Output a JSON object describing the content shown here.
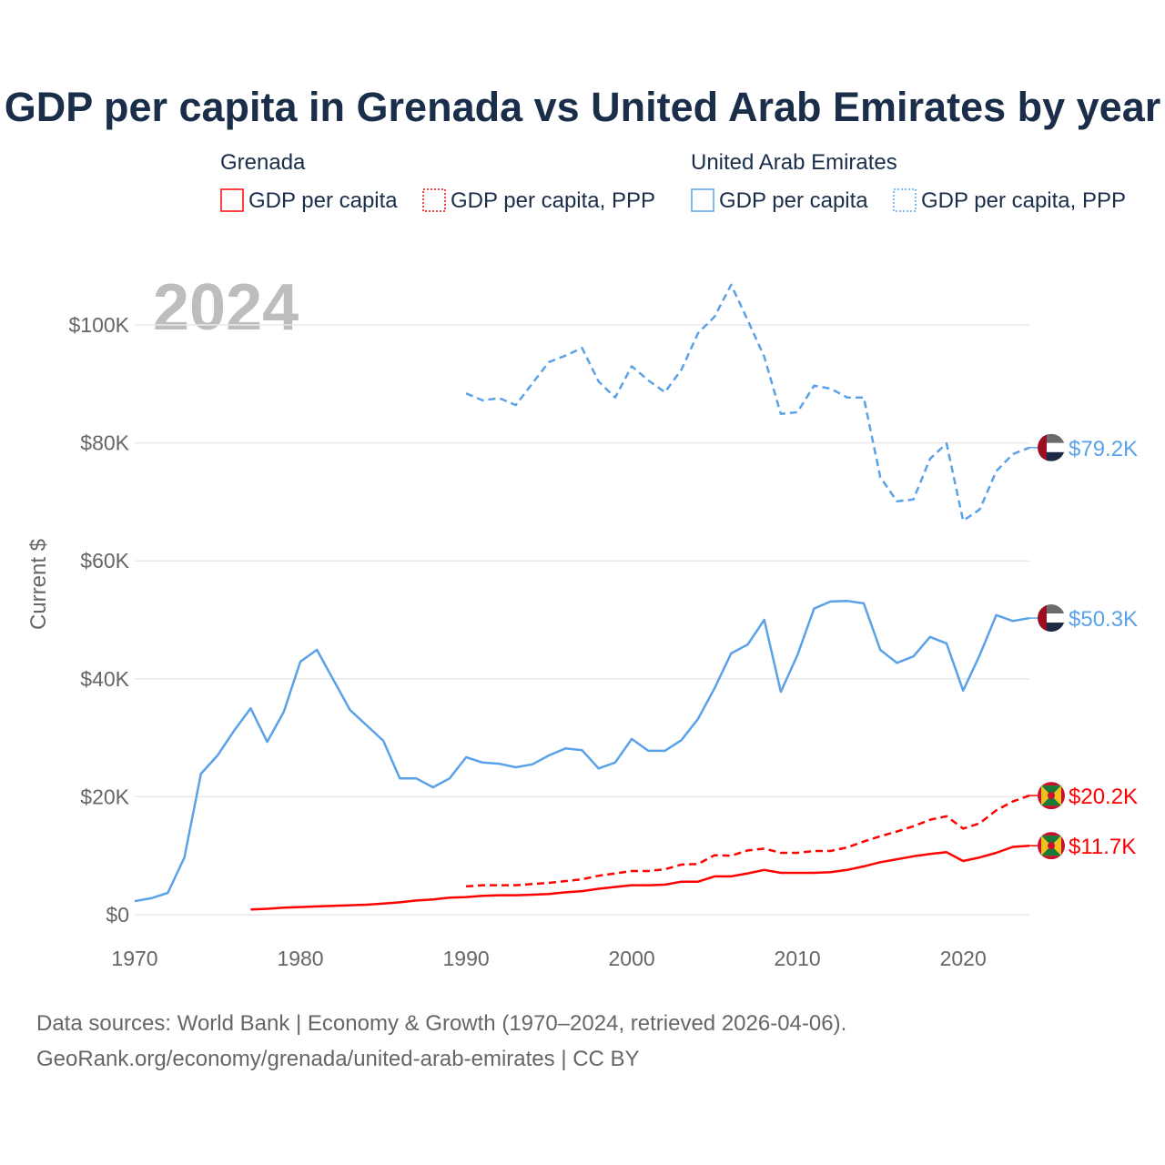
{
  "chart_data": {
    "type": "line",
    "title": "GDP per capita in Grenada vs United Arab Emirates by year",
    "ylabel": "Current $",
    "xlabel": "",
    "year_label": "2024",
    "xlim": [
      1970,
      2024
    ],
    "ylim": [
      0,
      100000
    ],
    "x_ticks": [
      1970,
      1980,
      1990,
      2000,
      2010,
      2020
    ],
    "x_tick_labels": [
      "1970",
      "1980",
      "1990",
      "2000",
      "2010",
      "2020"
    ],
    "y_ticks": [
      0,
      20000,
      40000,
      60000,
      80000,
      100000
    ],
    "y_tick_labels": [
      "$0",
      "$20K",
      "$40K",
      "$60K",
      "$80K",
      "$100K"
    ],
    "grid": true,
    "legend": {
      "placement": "top",
      "groups": [
        {
          "country": "Grenada",
          "items": [
            "GDP per capita",
            "GDP per capita, PPP"
          ]
        },
        {
          "country": "United Arab Emirates",
          "items": [
            "GDP per capita",
            "GDP per capita, PPP"
          ]
        }
      ]
    },
    "series": [
      {
        "name": "United Arab Emirates GDP per capita, PPP",
        "color": "#5aa2e8",
        "dash": true,
        "flag": "uae",
        "end_label": "$79.2K",
        "start": 1990,
        "values": [
          88400,
          87200,
          87600,
          86400,
          90100,
          93700,
          94800,
          96100,
          90400,
          87700,
          93000,
          90600,
          88600,
          92400,
          98600,
          101400,
          106800,
          100800,
          94600,
          84900,
          85200,
          89700,
          89200,
          87700,
          87700,
          74200,
          70100,
          70400,
          77300,
          79900,
          66800,
          68700,
          75200,
          78100,
          79200
        ]
      },
      {
        "name": "United Arab Emirates GDP per capita",
        "color": "#5aa2e8",
        "dash": false,
        "flag": "uae",
        "end_label": "$50.3K",
        "start": 1970,
        "values": [
          2300,
          2800,
          3700,
          9700,
          23900,
          27000,
          31200,
          35000,
          29300,
          34400,
          42900,
          44900,
          39800,
          34700,
          32100,
          29500,
          23100,
          23100,
          21600,
          23100,
          26700,
          25800,
          25600,
          25000,
          25500,
          27000,
          28200,
          27900,
          24800,
          25800,
          29800,
          27800,
          27800,
          29600,
          33200,
          38400,
          44300,
          45800,
          50000,
          37800,
          44000,
          51900,
          53100,
          53200,
          52800,
          44900,
          42700,
          43800,
          47100,
          46000,
          38000,
          44000,
          50800,
          49800,
          50300
        ]
      },
      {
        "name": "Grenada GDP per capita, PPP",
        "color": "#ff0000",
        "dash": true,
        "flag": "grenada",
        "end_label": "$20.2K",
        "start": 1990,
        "values": [
          4800,
          5000,
          5000,
          5000,
          5200,
          5400,
          5700,
          6000,
          6600,
          7000,
          7400,
          7400,
          7700,
          8500,
          8600,
          10100,
          10000,
          10900,
          11200,
          10500,
          10500,
          10800,
          10800,
          11400,
          12400,
          13300,
          14100,
          15000,
          16100,
          16700,
          14600,
          15500,
          17700,
          19200,
          20200
        ]
      },
      {
        "name": "Grenada GDP per capita",
        "color": "#ff0000",
        "dash": false,
        "flag": "grenada",
        "end_label": "$11.7K",
        "start": 1977,
        "values": [
          900,
          1000,
          1200,
          1300,
          1400,
          1500,
          1600,
          1700,
          1900,
          2100,
          2400,
          2600,
          2900,
          3000,
          3200,
          3300,
          3300,
          3400,
          3500,
          3800,
          4000,
          4400,
          4700,
          5000,
          5000,
          5100,
          5600,
          5600,
          6500,
          6500,
          7000,
          7600,
          7100,
          7100,
          7100,
          7200,
          7600,
          8200,
          8900,
          9400,
          9900,
          10300,
          10600,
          9100,
          9700,
          10500,
          11500,
          11700
        ]
      }
    ]
  },
  "footer": {
    "line1": "Data sources: World Bank | Economy & Growth (1970–2024, retrieved 2026-04-06).",
    "line2": "GeoRank.org/economy/grenada/united-arab-emirates | CC BY"
  }
}
